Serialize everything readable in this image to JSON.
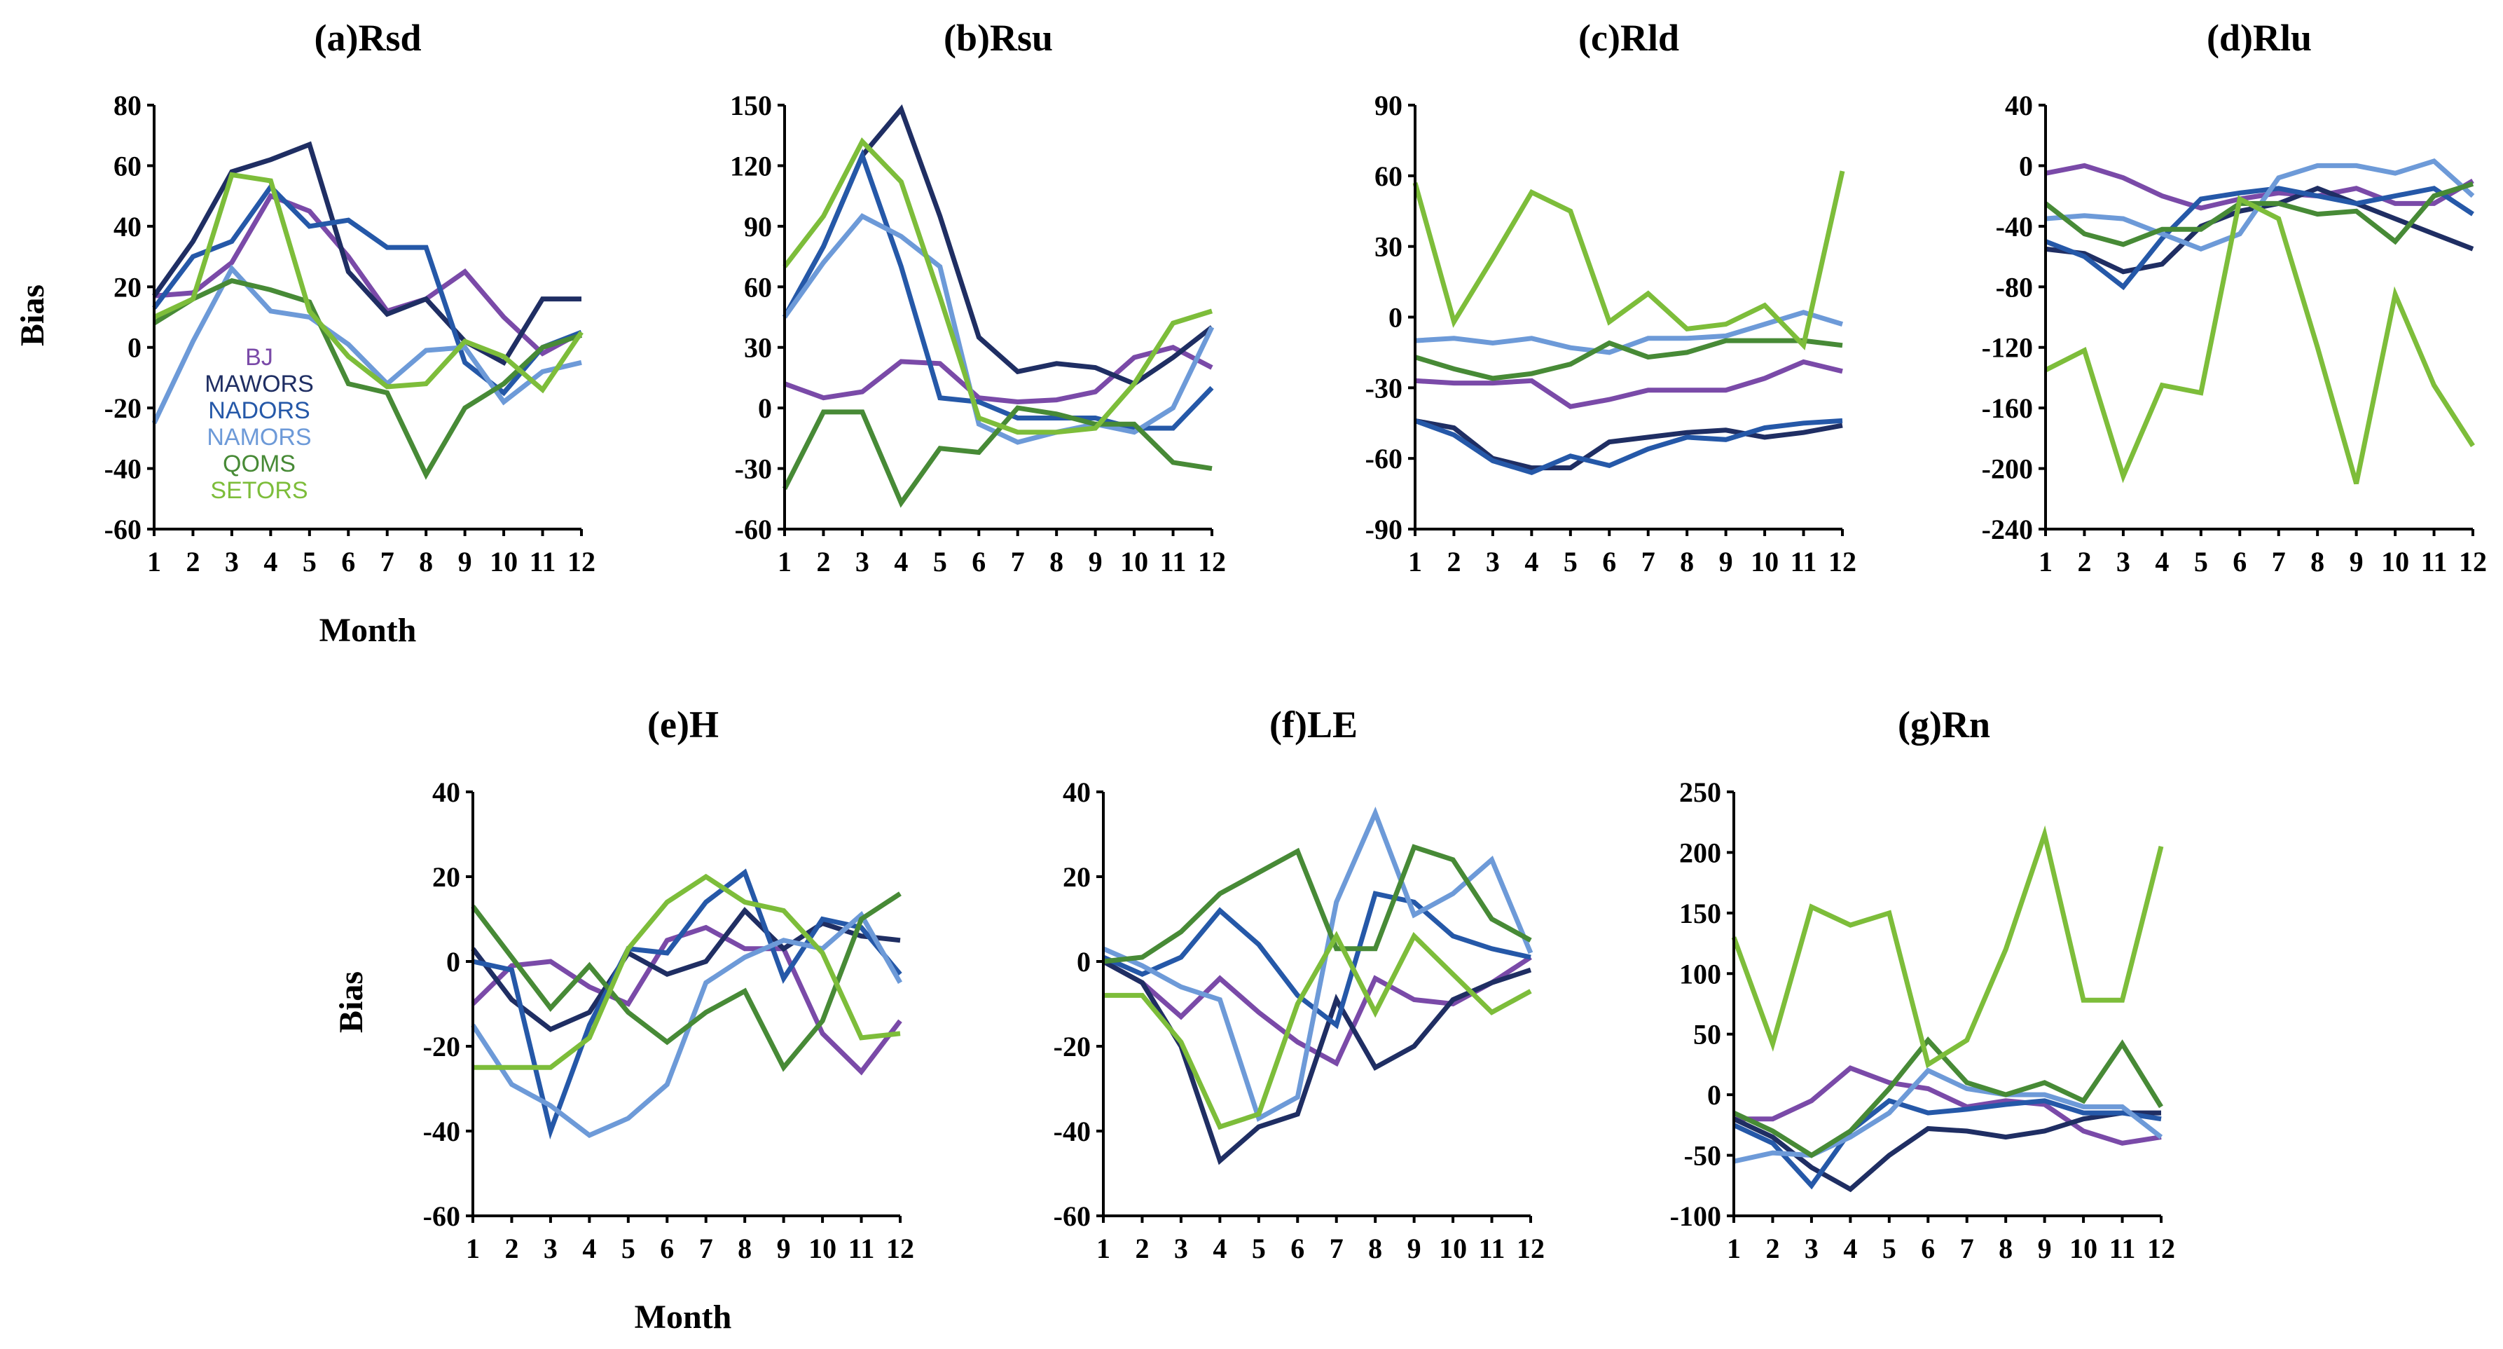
{
  "colors": {
    "BJ": "#7a4aa8",
    "MAWORS": "#1f2e63",
    "NADORS": "#2558a8",
    "NAMORS": "#6d9ad8",
    "QOMS": "#478a36",
    "SETORS": "#7dbd3a"
  },
  "chart_data": [
    {
      "id": "rsd",
      "type": "line",
      "title": "(a)Rsd",
      "xlabel": "Month",
      "ylabel": "Bias",
      "categories": [
        "1",
        "2",
        "3",
        "4",
        "5",
        "6",
        "7",
        "8",
        "9",
        "10",
        "11",
        "12"
      ],
      "ylim": [
        -60,
        80
      ],
      "yticks": [
        "80",
        "60",
        "40",
        "20",
        "0",
        "-20",
        "-40",
        "-60"
      ],
      "legend": {
        "placement": "lower-left",
        "entries": [
          "BJ",
          "MAWORS",
          "NADORS",
          "NAMORS",
          "QOMS",
          "SETORS"
        ]
      },
      "series": [
        {
          "name": "BJ",
          "values": [
            17,
            18,
            28,
            50,
            45,
            30,
            12,
            16,
            25,
            10,
            -2,
            5
          ]
        },
        {
          "name": "MAWORS",
          "values": [
            17,
            35,
            58,
            62,
            67,
            25,
            11,
            16,
            2,
            -5,
            16,
            16
          ]
        },
        {
          "name": "NADORS",
          "values": [
            13,
            30,
            35,
            53,
            40,
            42,
            33,
            33,
            -5,
            -15,
            0,
            5
          ]
        },
        {
          "name": "NAMORS",
          "values": [
            -25,
            2,
            26,
            12,
            10,
            1,
            -12,
            -1,
            0,
            -18,
            -8,
            -5
          ]
        },
        {
          "name": "QOMS",
          "values": [
            8,
            16,
            22,
            19,
            15,
            -12,
            -15,
            -42,
            -20,
            -12,
            0,
            4
          ]
        },
        {
          "name": "SETORS",
          "values": [
            10,
            16,
            57,
            55,
            12,
            -3,
            -13,
            -12,
            2,
            -3,
            -14,
            5
          ]
        }
      ]
    },
    {
      "id": "rsu",
      "type": "line",
      "title": "(b)Rsu",
      "xlabel": "",
      "ylabel": "",
      "categories": [
        "1",
        "2",
        "3",
        "4",
        "5",
        "6",
        "7",
        "8",
        "9",
        "10",
        "11",
        "12"
      ],
      "ylim": [
        -60,
        150
      ],
      "yticks": [
        "150",
        "120",
        "90",
        "60",
        "30",
        "0",
        "-30",
        "-60"
      ],
      "series": [
        {
          "name": "BJ",
          "values": [
            12,
            5,
            8,
            23,
            22,
            5,
            3,
            4,
            8,
            25,
            30,
            20
          ]
        },
        {
          "name": "MAWORS",
          "values": [
            45,
            80,
            125,
            148,
            95,
            35,
            18,
            22,
            20,
            12,
            25,
            40
          ]
        },
        {
          "name": "NADORS",
          "values": [
            45,
            80,
            125,
            70,
            5,
            3,
            -5,
            -5,
            -5,
            -10,
            -10,
            10
          ]
        },
        {
          "name": "NAMORS",
          "values": [
            45,
            72,
            95,
            85,
            70,
            -8,
            -17,
            -12,
            -8,
            -12,
            0,
            40
          ]
        },
        {
          "name": "QOMS",
          "values": [
            -40,
            -2,
            -2,
            -47,
            -20,
            -22,
            0,
            -3,
            -8,
            -8,
            -27,
            -30
          ]
        },
        {
          "name": "SETORS",
          "values": [
            70,
            95,
            132,
            112,
            55,
            -5,
            -12,
            -12,
            -10,
            12,
            42,
            48
          ]
        }
      ]
    },
    {
      "id": "rld",
      "type": "line",
      "title": "(c)Rld",
      "xlabel": "",
      "ylabel": "",
      "categories": [
        "1",
        "2",
        "3",
        "4",
        "5",
        "6",
        "7",
        "8",
        "9",
        "10",
        "11",
        "12"
      ],
      "ylim": [
        -90,
        90
      ],
      "yticks": [
        "90",
        "60",
        "30",
        "0",
        "-30",
        "-60",
        "-90"
      ],
      "series": [
        {
          "name": "BJ",
          "values": [
            -27,
            -28,
            -28,
            -27,
            -38,
            -35,
            -31,
            -31,
            -31,
            -26,
            -19,
            -23
          ]
        },
        {
          "name": "MAWORS",
          "values": [
            -44,
            -47,
            -60,
            -64,
            -64,
            -53,
            -51,
            -49,
            -48,
            -51,
            -49,
            -46
          ]
        },
        {
          "name": "NADORS",
          "values": [
            -44,
            -50,
            -61,
            -66,
            -59,
            -63,
            -56,
            -51,
            -52,
            -47,
            -45,
            -44
          ]
        },
        {
          "name": "NAMORS",
          "values": [
            -10,
            -9,
            -11,
            -9,
            -13,
            -15,
            -9,
            -9,
            -8,
            -3,
            2,
            -3
          ]
        },
        {
          "name": "QOMS",
          "values": [
            -17,
            -22,
            -26,
            -24,
            -20,
            -11,
            -17,
            -15,
            -10,
            -10,
            -10,
            -12
          ]
        },
        {
          "name": "SETORS",
          "values": [
            57,
            -2,
            25,
            53,
            45,
            -2,
            10,
            -5,
            -3,
            5,
            -12,
            62
          ]
        }
      ]
    },
    {
      "id": "rlu",
      "type": "line",
      "title": "(d)Rlu",
      "xlabel": "",
      "ylabel": "",
      "categories": [
        "1",
        "2",
        "3",
        "4",
        "5",
        "6",
        "7",
        "8",
        "9",
        "10",
        "11",
        "12"
      ],
      "ylim": [
        -240,
        40
      ],
      "yticks": [
        "40",
        "0",
        "-40",
        "-80",
        "-120",
        "-160",
        "-200",
        "-240"
      ],
      "series": [
        {
          "name": "BJ",
          "values": [
            -5,
            0,
            -8,
            -20,
            -28,
            -22,
            -18,
            -20,
            -15,
            -25,
            -25,
            -10
          ]
        },
        {
          "name": "MAWORS",
          "values": [
            -55,
            -58,
            -70,
            -65,
            -40,
            -30,
            -25,
            -15,
            -25,
            -35,
            -45,
            -55
          ]
        },
        {
          "name": "NADORS",
          "values": [
            -50,
            -60,
            -80,
            -48,
            -22,
            -18,
            -15,
            -20,
            -25,
            -20,
            -15,
            -32
          ]
        },
        {
          "name": "NAMORS",
          "values": [
            -35,
            -33,
            -35,
            -45,
            -55,
            -45,
            -8,
            0,
            0,
            -5,
            3,
            -20
          ]
        },
        {
          "name": "QOMS",
          "values": [
            -25,
            -45,
            -52,
            -42,
            -42,
            -25,
            -25,
            -32,
            -30,
            -50,
            -20,
            -12
          ]
        },
        {
          "name": "SETORS",
          "values": [
            -135,
            -122,
            -205,
            -145,
            -150,
            -22,
            -35,
            -120,
            -210,
            -85,
            -145,
            -185
          ]
        }
      ]
    },
    {
      "id": "h",
      "type": "line",
      "title": "(e)H",
      "xlabel": "Month",
      "ylabel": "Bias",
      "categories": [
        "1",
        "2",
        "3",
        "4",
        "5",
        "6",
        "7",
        "8",
        "9",
        "10",
        "11",
        "12"
      ],
      "ylim": [
        -60,
        40
      ],
      "yticks": [
        "40",
        "20",
        "0",
        "-20",
        "-40",
        "-60"
      ],
      "series": [
        {
          "name": "BJ",
          "values": [
            -10,
            -1,
            0,
            -6,
            -10,
            5,
            8,
            3,
            3,
            -17,
            -26,
            -14
          ]
        },
        {
          "name": "MAWORS",
          "values": [
            3,
            -9,
            -16,
            -12,
            2,
            -3,
            0,
            12,
            3,
            9,
            6,
            5
          ]
        },
        {
          "name": "NADORS",
          "values": [
            0,
            -2,
            -40,
            -15,
            3,
            2,
            14,
            21,
            -4,
            10,
            8,
            -3
          ]
        },
        {
          "name": "NAMORS",
          "values": [
            -15,
            -29,
            -34,
            -41,
            -37,
            -29,
            -5,
            1,
            5,
            3,
            11,
            -5
          ]
        },
        {
          "name": "QOMS",
          "values": [
            13,
            1,
            -11,
            -1,
            -12,
            -19,
            -12,
            -7,
            -25,
            -14,
            10,
            16
          ]
        },
        {
          "name": "SETORS",
          "values": [
            -25,
            -25,
            -25,
            -18,
            3,
            14,
            20,
            14,
            12,
            2,
            -18,
            -17
          ]
        }
      ]
    },
    {
      "id": "le",
      "type": "line",
      "title": "(f)LE",
      "xlabel": "",
      "ylabel": "",
      "categories": [
        "1",
        "2",
        "3",
        "4",
        "5",
        "6",
        "7",
        "8",
        "9",
        "10",
        "11",
        "12"
      ],
      "ylim": [
        -60,
        40
      ],
      "yticks": [
        "40",
        "20",
        "0",
        "-20",
        "-40",
        "-60"
      ],
      "series": [
        {
          "name": "BJ",
          "values": [
            0,
            -5,
            -13,
            -4,
            -12,
            -19,
            -24,
            -4,
            -9,
            -10,
            -5,
            1
          ]
        },
        {
          "name": "MAWORS",
          "values": [
            0,
            -5,
            -20,
            -47,
            -39,
            -36,
            -9,
            -25,
            -20,
            -9,
            -5,
            -2
          ]
        },
        {
          "name": "NADORS",
          "values": [
            1,
            -3,
            1,
            12,
            4,
            -8,
            -15,
            16,
            14,
            6,
            3,
            1
          ]
        },
        {
          "name": "NAMORS",
          "values": [
            3,
            -1,
            -6,
            -9,
            -37,
            -32,
            14,
            35,
            11,
            16,
            24,
            2
          ]
        },
        {
          "name": "QOMS",
          "values": [
            0,
            1,
            7,
            16,
            21,
            26,
            3,
            3,
            27,
            24,
            10,
            5
          ]
        },
        {
          "name": "SETORS",
          "values": [
            -8,
            -8,
            -19,
            -39,
            -36,
            -10,
            6,
            -12,
            6,
            -3,
            -12,
            -7
          ]
        }
      ]
    },
    {
      "id": "rn",
      "type": "line",
      "title": "(g)Rn",
      "xlabel": "",
      "ylabel": "",
      "categories": [
        "1",
        "2",
        "3",
        "4",
        "5",
        "6",
        "7",
        "8",
        "9",
        "10",
        "11",
        "12"
      ],
      "ylim": [
        -100,
        250
      ],
      "yticks": [
        "250",
        "200",
        "150",
        "100",
        "50",
        "0",
        "-50",
        "-100"
      ],
      "series": [
        {
          "name": "BJ",
          "values": [
            -20,
            -20,
            -5,
            22,
            10,
            5,
            -10,
            -5,
            -8,
            -30,
            -40,
            -35
          ]
        },
        {
          "name": "MAWORS",
          "values": [
            -20,
            -35,
            -60,
            -78,
            -50,
            -28,
            -30,
            -35,
            -30,
            -20,
            -15,
            -15
          ]
        },
        {
          "name": "NADORS",
          "values": [
            -25,
            -40,
            -75,
            -30,
            -5,
            -15,
            -12,
            -8,
            -5,
            -15,
            -15,
            -20
          ]
        },
        {
          "name": "NAMORS",
          "values": [
            -55,
            -48,
            -50,
            -35,
            -15,
            20,
            5,
            0,
            0,
            -10,
            -10,
            -35
          ]
        },
        {
          "name": "QOMS",
          "values": [
            -15,
            -30,
            -50,
            -30,
            5,
            45,
            10,
            0,
            10,
            -5,
            42,
            -10
          ]
        },
        {
          "name": "SETORS",
          "values": [
            130,
            42,
            155,
            140,
            150,
            25,
            45,
            120,
            215,
            78,
            78,
            205
          ]
        }
      ]
    }
  ]
}
